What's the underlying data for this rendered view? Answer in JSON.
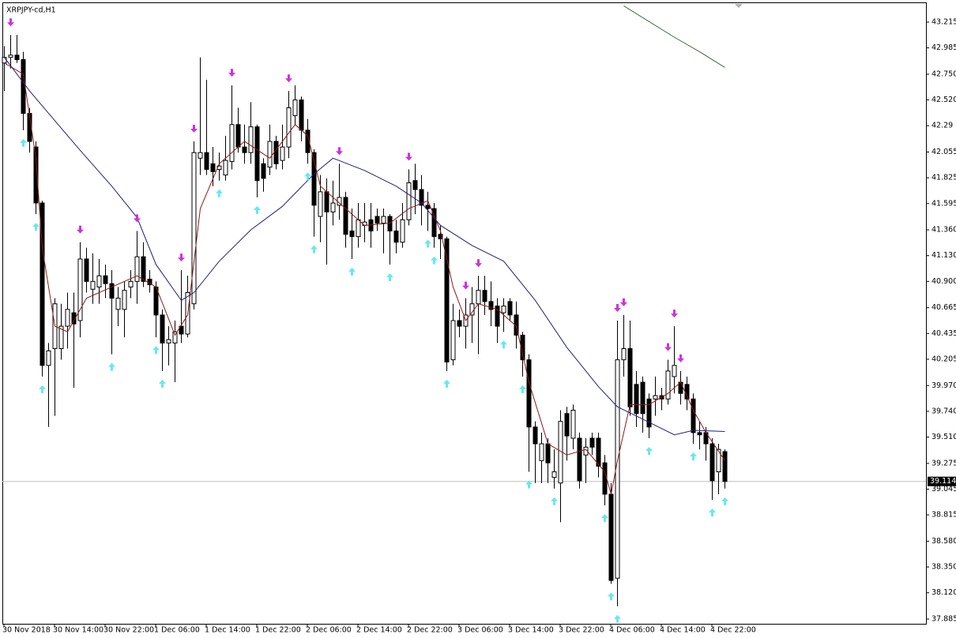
{
  "chart_data": {
    "type": "candlestick",
    "title": "XRPJPY-cd,H1",
    "categories": [
      "30 Nov 2018",
      null,
      null,
      null,
      null,
      null,
      null,
      null,
      "30 Nov 14:00",
      null,
      null,
      null,
      null,
      null,
      null,
      null,
      "30 Nov 22:00",
      null,
      null,
      null,
      null,
      null,
      null,
      null,
      "1 Dec 06:00",
      null,
      null,
      null,
      null,
      null,
      null,
      null,
      "1 Dec 14:00",
      null,
      null,
      null,
      null,
      null,
      null,
      null,
      "1 Dec 22:00",
      null,
      null,
      null,
      null,
      null,
      null,
      null,
      "2 Dec 06:00",
      null,
      null,
      null,
      null,
      null,
      null,
      null,
      "2 Dec 14:00",
      null,
      null,
      null,
      null,
      null,
      null,
      null,
      "2 Dec 22:00",
      null,
      null,
      null,
      null,
      null,
      null,
      null,
      "3 Dec 06:00",
      null,
      null,
      null,
      null,
      null,
      null,
      null,
      "3 Dec 14:00",
      null,
      null,
      null,
      null,
      null,
      null,
      null,
      "3 Dec 22:00",
      null,
      null,
      null,
      null,
      null,
      null,
      null,
      "4 Dec 06:00",
      null,
      null,
      null,
      null,
      null,
      null,
      null,
      "4 Dec 14:00",
      null,
      null,
      null,
      null,
      null,
      null,
      null,
      "4 Dec 22:00",
      null,
      null
    ],
    "open": [
      42.85,
      42.9,
      42.92,
      42.88,
      42.4,
      42.1,
      41.6,
      40.15,
      40.3,
      40.3,
      40.5,
      40.62,
      40.55,
      41.1,
      40.83,
      40.85,
      40.95,
      40.88,
      40.65,
      40.65,
      40.85,
      40.9,
      41.12,
      40.92,
      40.85,
      40.6,
      40.35,
      40.35,
      40.5,
      40.43,
      40.7,
      42.0,
      42.05,
      41.95,
      41.9,
      41.85,
      41.97,
      42.3,
      42.1,
      42.05,
      42.28,
      41.95,
      41.92,
      42.15,
      41.98,
      42.1,
      42.38,
      42.52,
      42.25,
      42.05,
      41.48,
      41.7,
      41.52,
      41.58,
      41.65,
      41.35,
      41.3,
      41.4,
      41.45,
      41.48,
      41.42,
      41.48,
      41.35,
      41.25,
      41.45,
      41.8,
      41.72,
      41.58,
      41.55,
      41.32,
      41.28,
      40.2,
      40.55,
      40.5,
      40.6,
      40.7,
      40.82,
      40.72,
      40.68,
      40.62,
      40.72,
      40.6,
      40.42,
      40.2,
      39.6,
      39.3,
      39.45,
      39.15,
      39.1,
      39.72,
      39.5,
      39.5,
      39.35,
      39.5,
      39.5,
      39.28,
      39.0,
      38.25,
      40.2,
      40.3,
      39.98,
      40.0,
      39.85,
      39.85,
      39.88,
      39.85,
      40.05,
      40.0,
      39.98,
      39.85,
      39.55,
      39.55,
      39.45,
      39.2,
      39.38
    ],
    "high": [
      43.0,
      43.1,
      43.1,
      42.95,
      42.45,
      42.15,
      41.62,
      40.35,
      40.75,
      40.7,
      40.8,
      40.8,
      41.25,
      41.2,
      41.15,
      41.1,
      41.05,
      41.0,
      40.85,
      40.9,
      41.0,
      41.35,
      41.25,
      41.0,
      40.9,
      40.65,
      40.5,
      40.55,
      41.0,
      40.95,
      42.15,
      42.9,
      42.7,
      42.1,
      42.05,
      42.2,
      42.65,
      42.45,
      42.3,
      42.5,
      42.3,
      42.0,
      42.3,
      42.2,
      42.3,
      42.6,
      42.65,
      42.55,
      42.35,
      42.08,
      41.85,
      41.82,
      41.8,
      41.95,
      41.7,
      41.55,
      41.6,
      41.6,
      41.6,
      41.55,
      41.55,
      41.5,
      41.45,
      41.6,
      41.9,
      41.95,
      41.85,
      41.7,
      41.6,
      41.4,
      41.3,
      40.7,
      40.65,
      40.75,
      40.85,
      40.95,
      40.95,
      40.9,
      40.75,
      40.75,
      40.75,
      40.72,
      40.45,
      40.25,
      39.65,
      39.55,
      39.5,
      39.4,
      39.75,
      39.78,
      39.8,
      39.55,
      39.5,
      39.55,
      39.55,
      39.35,
      39.1,
      40.55,
      40.6,
      40.55,
      40.1,
      40.05,
      39.9,
      40.05,
      39.95,
      40.2,
      40.5,
      40.1,
      40.05,
      39.9,
      39.65,
      39.6,
      39.5,
      39.45,
      39.4
    ],
    "low": [
      42.6,
      42.8,
      42.85,
      42.25,
      42.05,
      41.5,
      40.05,
      39.6,
      39.7,
      40.2,
      40.3,
      39.95,
      40.4,
      40.8,
      40.7,
      40.7,
      40.75,
      40.25,
      40.5,
      40.4,
      40.75,
      40.7,
      40.85,
      40.8,
      40.4,
      40.1,
      40.15,
      40.0,
      40.35,
      40.4,
      40.65,
      41.85,
      41.85,
      41.75,
      41.8,
      41.8,
      41.9,
      42.05,
      41.95,
      41.95,
      41.65,
      41.7,
      41.85,
      41.9,
      41.9,
      42.0,
      42.3,
      42.15,
      41.95,
      41.3,
      41.25,
      41.05,
      41.4,
      41.45,
      41.2,
      41.1,
      41.2,
      41.25,
      41.2,
      41.35,
      41.15,
      41.05,
      41.15,
      41.2,
      41.4,
      41.5,
      41.4,
      41.35,
      41.2,
      41.1,
      40.1,
      40.15,
      40.4,
      40.3,
      40.35,
      40.25,
      40.6,
      40.5,
      40.35,
      40.45,
      40.55,
      40.3,
      40.05,
      39.2,
      39.1,
      39.1,
      39.1,
      39.05,
      38.75,
      39.3,
      39.4,
      39.05,
      39.1,
      39.35,
      39.15,
      38.9,
      38.2,
      38.0,
      40.05,
      39.7,
      39.6,
      39.55,
      39.5,
      39.7,
      39.75,
      39.8,
      39.9,
      39.8,
      39.75,
      39.45,
      39.4,
      39.3,
      38.95,
      39.0,
      39.05
    ],
    "close": [
      42.9,
      42.92,
      42.88,
      42.4,
      42.15,
      41.6,
      40.15,
      40.28,
      40.7,
      40.5,
      40.65,
      40.52,
      41.1,
      40.9,
      40.9,
      40.95,
      40.88,
      40.75,
      40.75,
      40.82,
      40.9,
      41.12,
      40.9,
      40.87,
      40.6,
      40.35,
      40.38,
      40.45,
      40.43,
      40.8,
      42.05,
      42.05,
      41.9,
      41.88,
      41.93,
      41.98,
      42.3,
      42.1,
      42.05,
      42.28,
      41.8,
      41.82,
      42.15,
      41.95,
      42.1,
      42.45,
      42.52,
      42.25,
      42.05,
      41.58,
      41.7,
      41.52,
      41.6,
      41.65,
      41.32,
      41.3,
      41.45,
      41.43,
      41.35,
      41.42,
      41.48,
      41.35,
      41.25,
      41.45,
      41.78,
      41.72,
      41.58,
      41.55,
      41.3,
      41.28,
      40.18,
      40.55,
      40.5,
      40.6,
      40.7,
      40.82,
      40.72,
      40.65,
      40.5,
      40.68,
      40.6,
      40.42,
      40.2,
      39.6,
      39.45,
      39.45,
      39.28,
      39.2,
      39.65,
      39.52,
      39.75,
      39.12,
      39.42,
      39.42,
      39.25,
      39.0,
      38.23,
      40.2,
      40.3,
      39.78,
      39.72,
      39.72,
      39.6,
      39.88,
      39.85,
      40.1,
      40.15,
      39.9,
      39.85,
      39.55,
      39.53,
      39.45,
      39.12,
      39.4,
      39.114
    ],
    "lines": [
      {
        "color": "#8b1a1a",
        "x": [
          0,
          3,
          5,
          6,
          8,
          10,
          13,
          17,
          21,
          24,
          27,
          29,
          31,
          34,
          38,
          42,
          46,
          48,
          50,
          53,
          57,
          61,
          64,
          67,
          69,
          71,
          73,
          75,
          78,
          81,
          83,
          86,
          89,
          92,
          95,
          96,
          97,
          99,
          102,
          105,
          107,
          109,
          111,
          114
        ],
        "values": [
          42.85,
          42.75,
          42.0,
          41.2,
          40.5,
          40.45,
          40.75,
          40.85,
          40.95,
          40.85,
          40.42,
          40.6,
          41.55,
          41.95,
          42.15,
          42.0,
          42.3,
          42.2,
          41.75,
          41.6,
          41.4,
          41.42,
          41.55,
          41.62,
          41.35,
          40.85,
          40.55,
          40.7,
          40.65,
          40.5,
          40.0,
          39.45,
          39.35,
          39.4,
          39.2,
          39.0,
          39.3,
          39.8,
          39.8,
          39.9,
          40.0,
          39.75,
          39.55,
          39.3
        ]
      },
      {
        "color": "#20207a",
        "x": [
          0,
          4,
          7,
          12,
          17,
          21,
          24,
          28,
          30,
          34,
          39,
          44,
          49,
          52,
          57,
          62,
          66,
          69,
          74,
          79,
          84,
          89,
          94,
          97,
          101,
          106,
          109,
          114
        ],
        "values": [
          42.9,
          42.6,
          42.4,
          42.07,
          41.75,
          41.47,
          41.05,
          40.73,
          40.8,
          41.08,
          41.36,
          41.57,
          41.86,
          42.0,
          41.89,
          41.75,
          41.6,
          41.4,
          41.22,
          41.08,
          40.73,
          40.31,
          39.96,
          39.78,
          39.67,
          39.53,
          39.57,
          39.56
        ]
      },
      {
        "color": "#3c6e3c",
        "x": [
          98,
          102,
          106,
          110,
          114
        ],
        "values": [
          43.36,
          43.22,
          43.08,
          42.95,
          42.81
        ]
      }
    ],
    "sell_signals": [
      1,
      12,
      21,
      28,
      30,
      36,
      45,
      53,
      64,
      73,
      75,
      97,
      98,
      105,
      106,
      107
    ],
    "buy_signals": [
      3,
      5,
      6,
      17,
      24,
      25,
      34,
      40,
      48,
      49,
      55,
      61,
      67,
      68,
      70,
      79,
      82,
      83,
      87,
      95,
      96,
      97,
      102,
      109,
      112,
      114
    ],
    "sell_color": "#cc33dd",
    "buy_color": "#66e8f0",
    "bull_color": "#ffffff",
    "bear_color": "#000000",
    "last_price": 39.114,
    "ylim": [
      37.843,
      43.377
    ],
    "yticks": [
      43.215,
      42.985,
      {
        "value": 42.75,
        "label": "42.750"
      },
      {
        "value": 42.52,
        "label": "42.520"
      },
      42.29,
      42.055,
      41.825,
      41.595,
      {
        "value": 41.36,
        "label": "41.360"
      },
      {
        "value": 41.13,
        "label": "41.130"
      },
      {
        "value": 40.9,
        "label": "40.900"
      },
      40.665,
      40.435,
      40.205,
      {
        "value": 39.97,
        "label": "39.970"
      },
      {
        "value": 39.74,
        "label": "39.740"
      },
      {
        "value": 39.51,
        "label": "39.510"
      },
      39.275,
      39.045,
      38.815,
      {
        "value": 38.58,
        "label": "38.580"
      },
      {
        "value": 38.35,
        "label": "38.350"
      },
      {
        "value": 38.12,
        "label": "38.120"
      },
      37.885
    ],
    "grid": false
  }
}
